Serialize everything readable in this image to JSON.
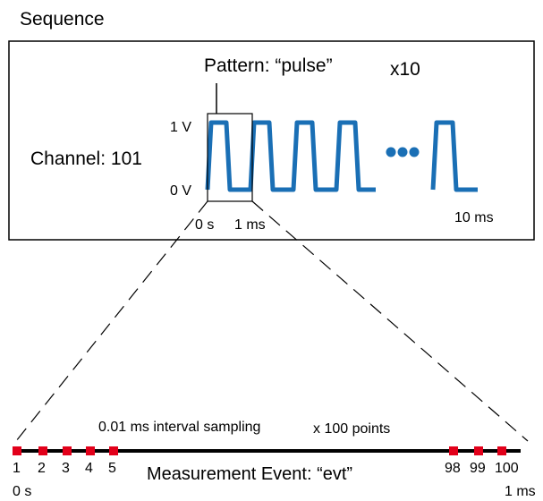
{
  "sequence_label": "Sequence",
  "pattern_label": "Pattern: “pulse”",
  "repeat_label": "x10",
  "channel_label": "Channel: 101",
  "voltage_high_label": "1 V",
  "voltage_low_label": "0 V",
  "time_start_label": "0 s",
  "pattern_end_label": "1 ms",
  "sequence_end_label": "10 ms",
  "ellipsis_dot_count": 3,
  "pulse_color": "#1a6fb5",
  "marker_color": "#e2001a",
  "sampling_label": "0.01 ms interval sampling",
  "points_label": "x 100 points",
  "event_label": "Measurement Event: “evt”",
  "sample_points_first": [
    "1",
    "2",
    "3",
    "4",
    "5"
  ],
  "sample_points_last": [
    "98",
    "99",
    "100"
  ],
  "timeline_start_label": "0 s",
  "timeline_end_label": "1 ms"
}
